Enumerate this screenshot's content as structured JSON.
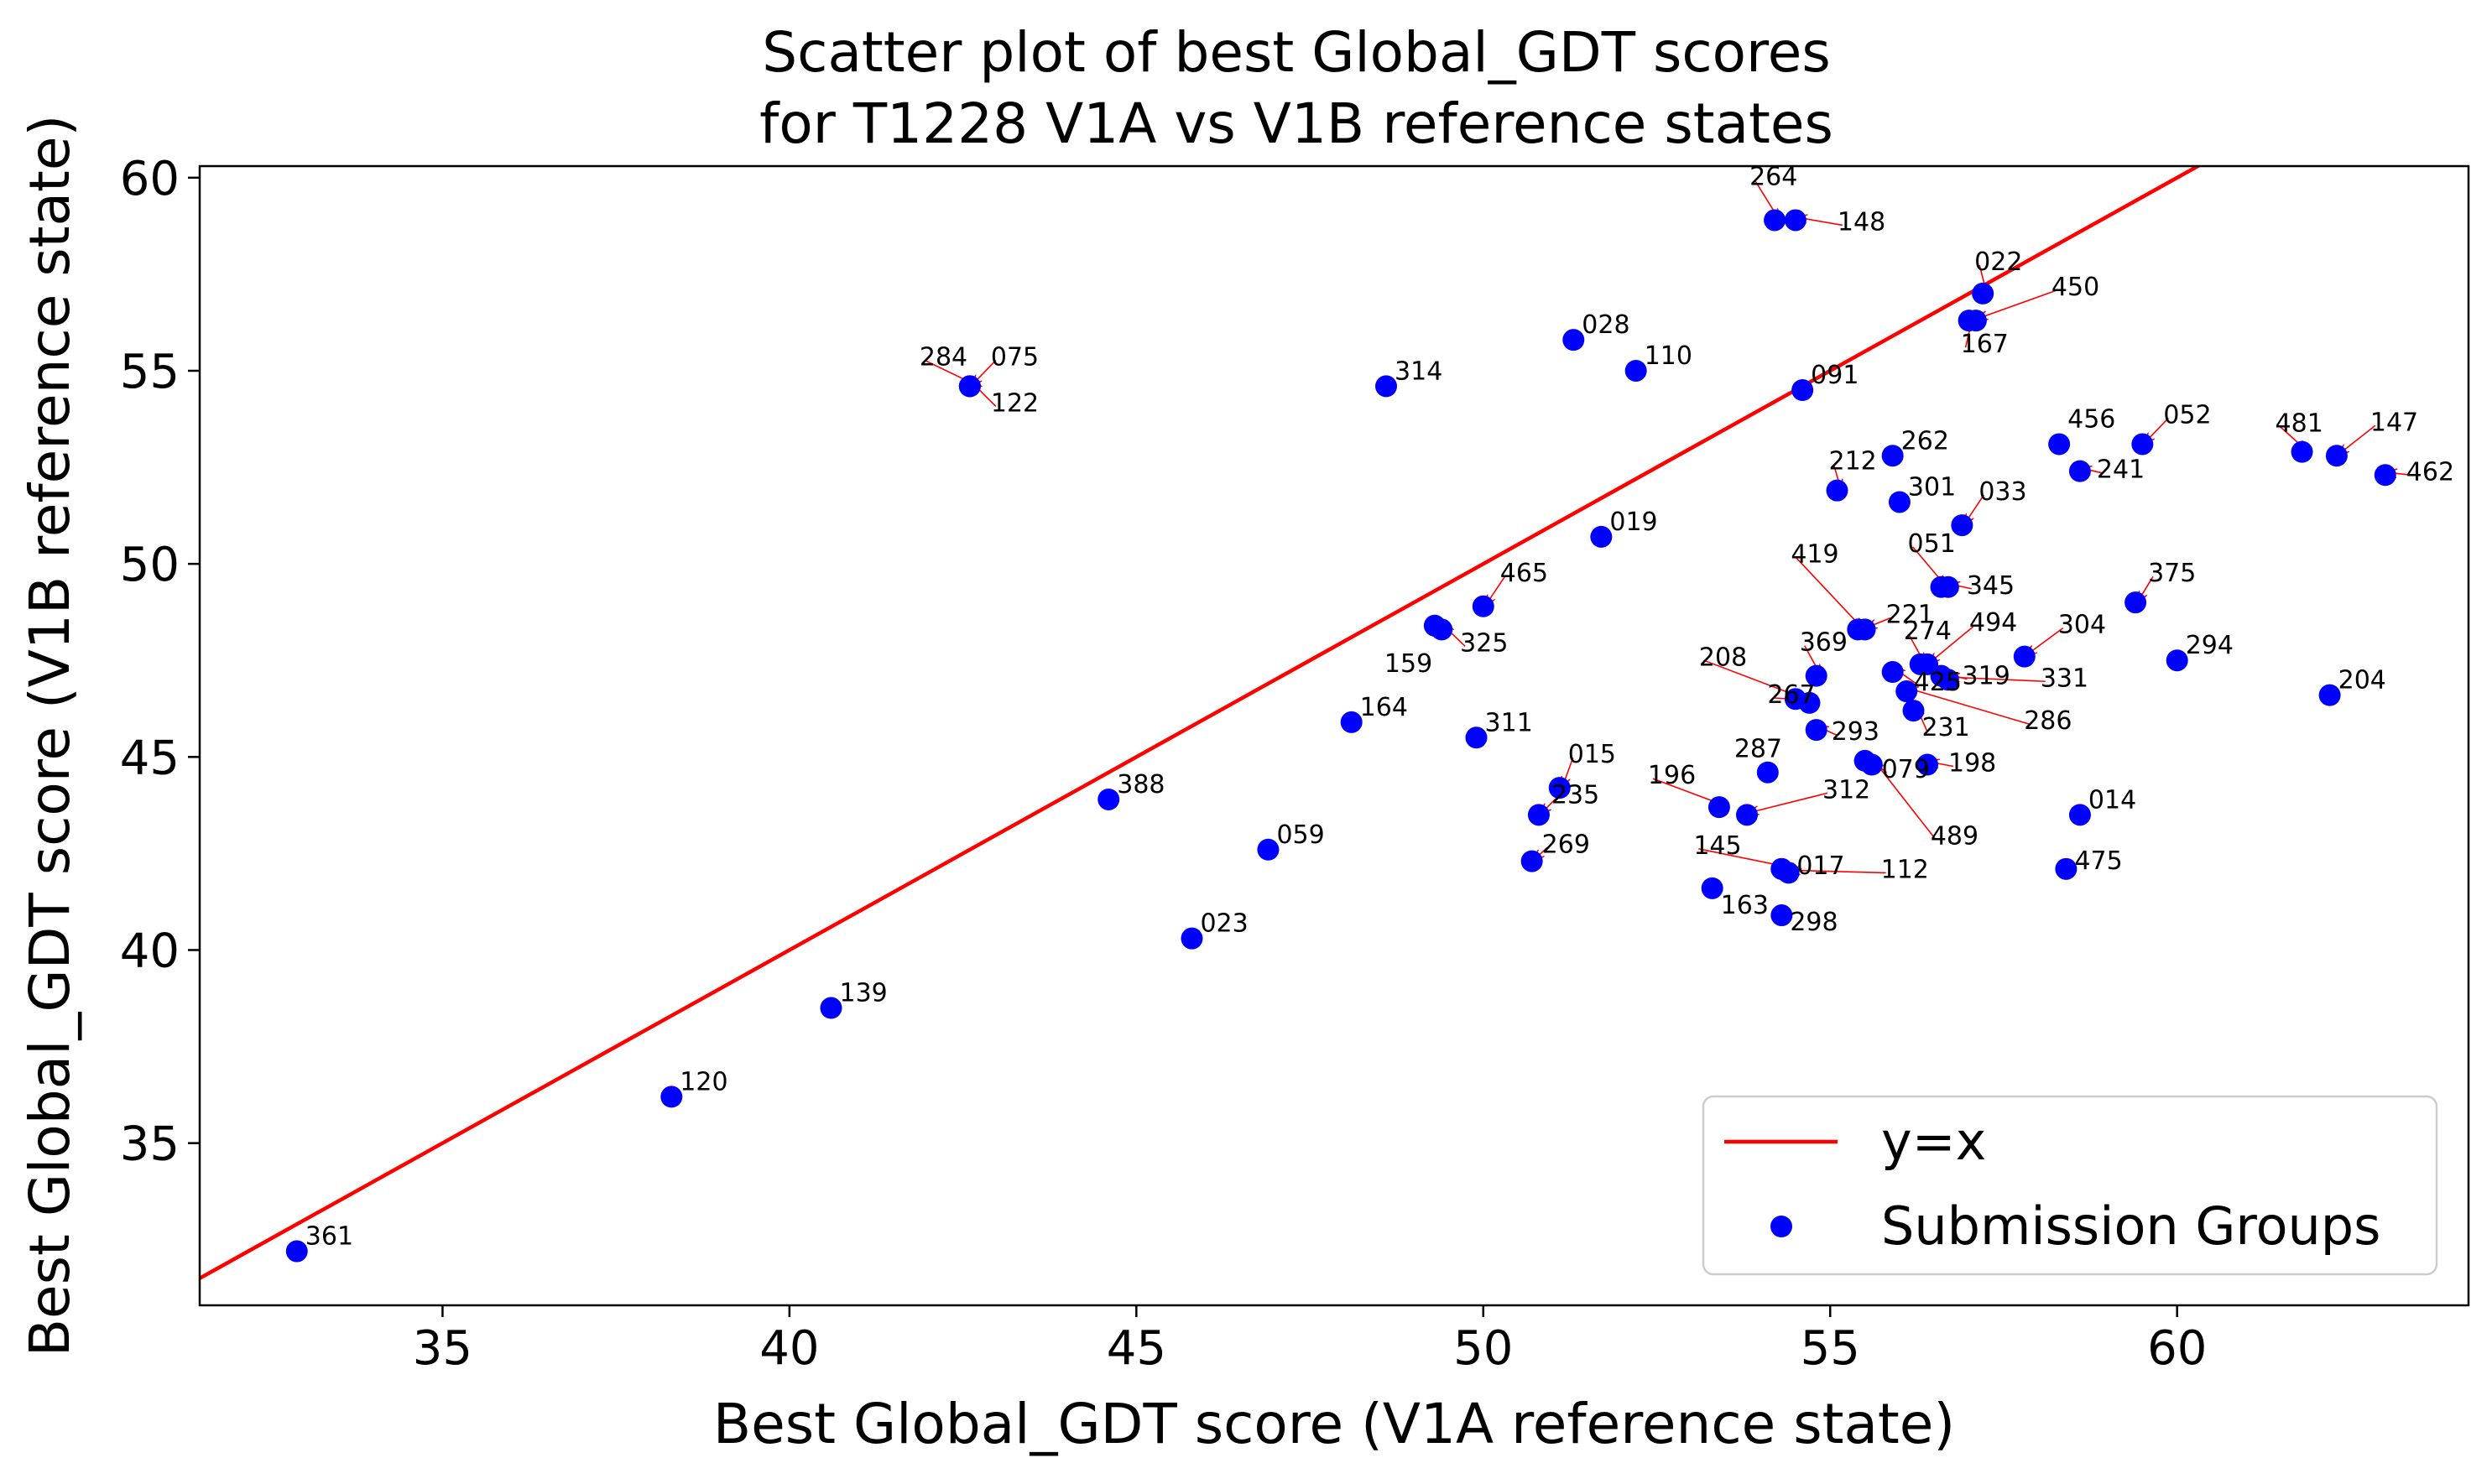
{
  "chart_data": {
    "type": "scatter",
    "title_line1": "Scatter plot of best Global_GDT scores",
    "title_line2": "for T1228 V1A vs V1B reference states",
    "xlabel": "Best Global_GDT score (V1A reference state)",
    "ylabel": "Best Global_GDT score (V1B reference state)",
    "xlim": [
      31.5,
      64.2
    ],
    "ylim": [
      30.8,
      60.3
    ],
    "xticks": [
      "35",
      "40",
      "45",
      "50",
      "55",
      "60"
    ],
    "yticks": [
      "35",
      "40",
      "45",
      "50",
      "55",
      "60"
    ],
    "grid": false,
    "legend_position": "lower-right",
    "legend": {
      "line": "y=x",
      "points": "Submission Groups"
    },
    "colors": {
      "points": "#0000ff",
      "line": "#ff0000",
      "arrows": "#ff0000"
    },
    "series": [
      {
        "name": "Submission Groups",
        "points": [
          {
            "id": "361",
            "x": 32.9,
            "y": 32.2
          },
          {
            "id": "120",
            "x": 38.3,
            "y": 36.2
          },
          {
            "id": "139",
            "x": 40.6,
            "y": 38.5
          },
          {
            "id": "023",
            "x": 45.8,
            "y": 40.3
          },
          {
            "id": "388",
            "x": 44.6,
            "y": 43.9
          },
          {
            "id": "059",
            "x": 46.9,
            "y": 42.6
          },
          {
            "id": "164",
            "x": 48.1,
            "y": 45.9
          },
          {
            "id": "311",
            "x": 49.9,
            "y": 45.5
          },
          {
            "id": "159",
            "x": 49.3,
            "y": 48.4
          },
          {
            "id": "325",
            "x": 49.4,
            "y": 48.3
          },
          {
            "id": "465",
            "x": 50.0,
            "y": 48.9
          },
          {
            "id": "019",
            "x": 51.7,
            "y": 50.7
          },
          {
            "id": "314",
            "x": 48.6,
            "y": 54.6
          },
          {
            "id": "028",
            "x": 51.3,
            "y": 55.8
          },
          {
            "id": "110",
            "x": 52.2,
            "y": 55.0
          },
          {
            "id": "091",
            "x": 54.6,
            "y": 54.5
          },
          {
            "id": "284",
            "x": 42.6,
            "y": 54.6
          },
          {
            "id": "075",
            "x": 42.6,
            "y": 54.6
          },
          {
            "id": "122",
            "x": 42.6,
            "y": 54.6
          },
          {
            "id": "264",
            "x": 54.2,
            "y": 58.9
          },
          {
            "id": "148",
            "x": 54.5,
            "y": 58.9
          },
          {
            "id": "022",
            "x": 57.2,
            "y": 57.0
          },
          {
            "id": "450",
            "x": 57.1,
            "y": 56.3
          },
          {
            "id": "167",
            "x": 57.0,
            "y": 56.3
          },
          {
            "id": "015",
            "x": 51.1,
            "y": 44.2
          },
          {
            "id": "235",
            "x": 50.8,
            "y": 43.5
          },
          {
            "id": "269",
            "x": 50.7,
            "y": 42.3
          },
          {
            "id": "212",
            "x": 55.1,
            "y": 51.9
          },
          {
            "id": "262",
            "x": 55.9,
            "y": 52.8
          },
          {
            "id": "301",
            "x": 56.0,
            "y": 51.6
          },
          {
            "id": "033",
            "x": 56.9,
            "y": 51.0
          },
          {
            "id": "051",
            "x": 56.6,
            "y": 49.4
          },
          {
            "id": "345",
            "x": 56.7,
            "y": 49.4
          },
          {
            "id": "419",
            "x": 55.4,
            "y": 48.3
          },
          {
            "id": "221",
            "x": 55.5,
            "y": 48.3
          },
          {
            "id": "369",
            "x": 54.8,
            "y": 47.1
          },
          {
            "id": "425",
            "x": 55.9,
            "y": 47.2
          },
          {
            "id": "274",
            "x": 56.3,
            "y": 47.4
          },
          {
            "id": "494",
            "x": 56.4,
            "y": 47.4
          },
          {
            "id": "319",
            "x": 56.6,
            "y": 47.1
          },
          {
            "id": "331",
            "x": 56.7,
            "y": 47.0
          },
          {
            "id": "304",
            "x": 57.8,
            "y": 47.6
          },
          {
            "id": "208",
            "x": 54.5,
            "y": 46.5
          },
          {
            "id": "267",
            "x": 54.7,
            "y": 46.4
          },
          {
            "id": "231",
            "x": 56.2,
            "y": 46.2
          },
          {
            "id": "286",
            "x": 56.1,
            "y": 46.7
          },
          {
            "id": "293",
            "x": 54.8,
            "y": 45.7
          },
          {
            "id": "079",
            "x": 55.5,
            "y": 44.9
          },
          {
            "id": "489",
            "x": 55.6,
            "y": 44.8
          },
          {
            "id": "287",
            "x": 54.1,
            "y": 44.6
          },
          {
            "id": "198",
            "x": 56.4,
            "y": 44.8
          },
          {
            "id": "196",
            "x": 53.4,
            "y": 43.7
          },
          {
            "id": "312",
            "x": 53.8,
            "y": 43.5
          },
          {
            "id": "145",
            "x": 54.3,
            "y": 42.1
          },
          {
            "id": "017",
            "x": 54.3,
            "y": 42.1
          },
          {
            "id": "112",
            "x": 54.4,
            "y": 42.0
          },
          {
            "id": "163",
            "x": 53.3,
            "y": 41.6
          },
          {
            "id": "298",
            "x": 54.3,
            "y": 40.9
          },
          {
            "id": "014",
            "x": 58.6,
            "y": 43.5
          },
          {
            "id": "475",
            "x": 58.4,
            "y": 42.1
          },
          {
            "id": "456",
            "x": 58.3,
            "y": 53.1
          },
          {
            "id": "241",
            "x": 58.6,
            "y": 52.4
          },
          {
            "id": "052",
            "x": 59.5,
            "y": 53.1
          },
          {
            "id": "375",
            "x": 59.4,
            "y": 49.0
          },
          {
            "id": "294",
            "x": 60.0,
            "y": 47.5
          },
          {
            "id": "481",
            "x": 61.8,
            "y": 52.9
          },
          {
            "id": "147",
            "x": 62.3,
            "y": 52.8
          },
          {
            "id": "462",
            "x": 63.0,
            "y": 52.3
          },
          {
            "id": "204",
            "x": 62.2,
            "y": 46.6
          }
        ]
      }
    ]
  }
}
